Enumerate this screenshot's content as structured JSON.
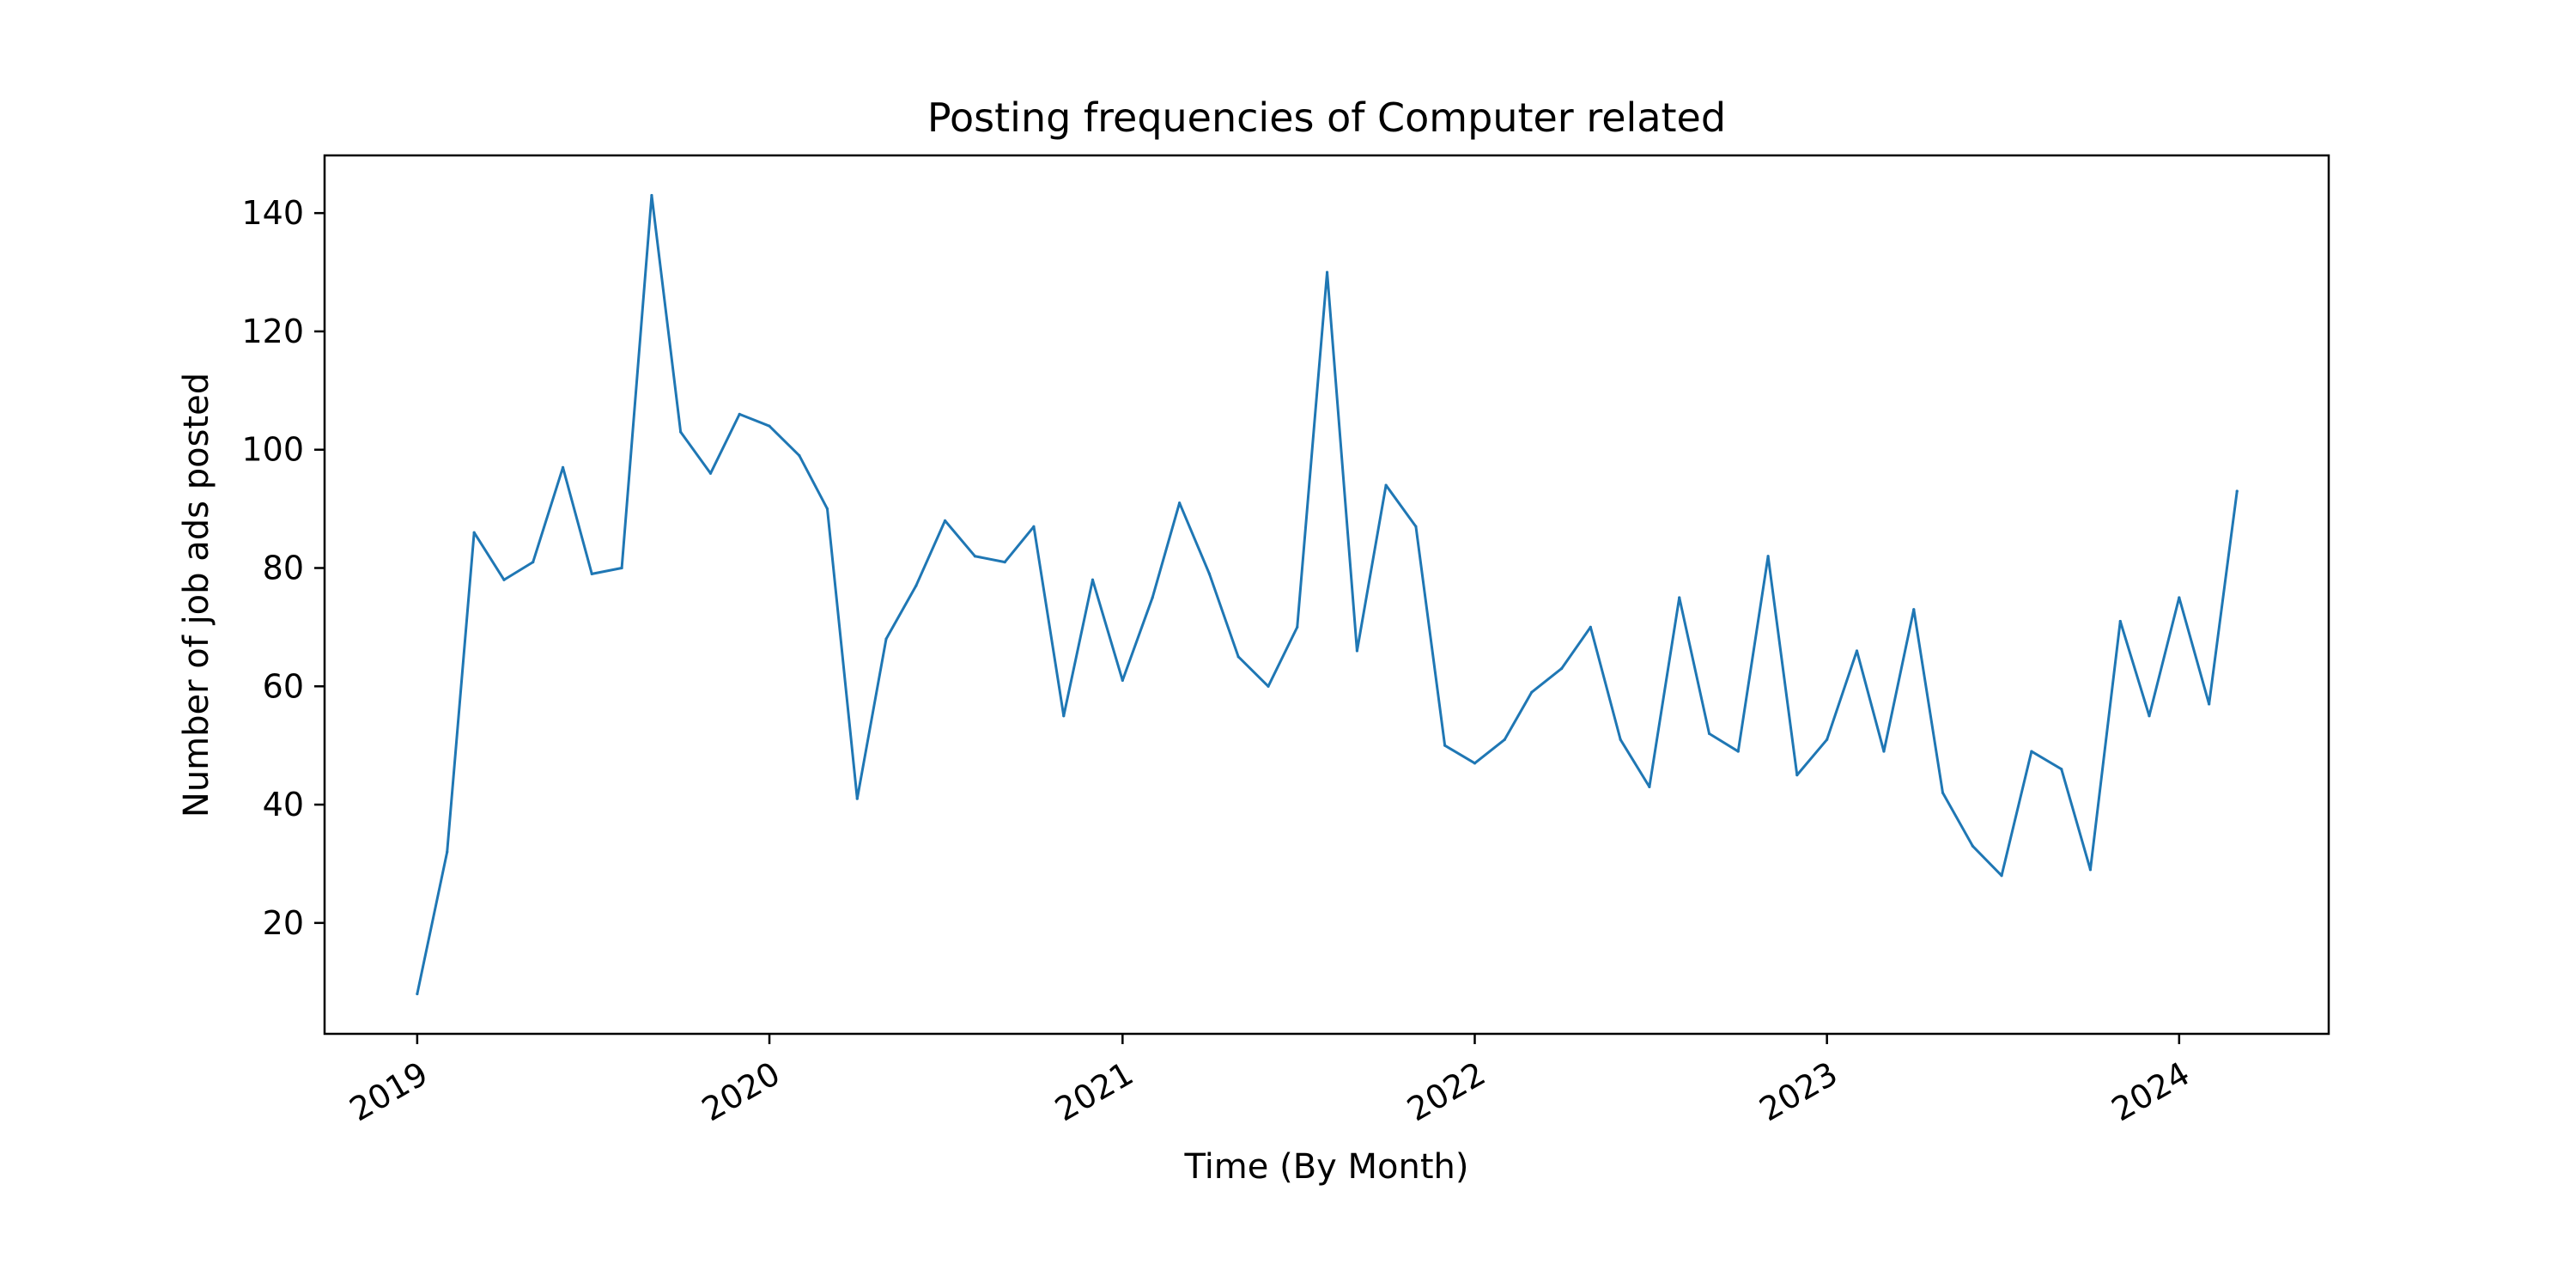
{
  "chart_data": {
    "type": "line",
    "title": "Posting frequencies of Computer related",
    "xlabel": "Time (By Month)",
    "ylabel": "Number of job ads posted",
    "x": [
      "2019-01",
      "2019-02",
      "2019-03",
      "2019-04",
      "2019-05",
      "2019-06",
      "2019-07",
      "2019-08",
      "2019-09",
      "2019-10",
      "2019-11",
      "2019-12",
      "2020-01",
      "2020-02",
      "2020-03",
      "2020-04",
      "2020-05",
      "2020-06",
      "2020-07",
      "2020-08",
      "2020-09",
      "2020-10",
      "2020-11",
      "2020-12",
      "2021-01",
      "2021-02",
      "2021-03",
      "2021-04",
      "2021-05",
      "2021-06",
      "2021-07",
      "2021-08",
      "2021-09",
      "2021-10",
      "2021-11",
      "2021-12",
      "2022-01",
      "2022-02",
      "2022-03",
      "2022-04",
      "2022-05",
      "2022-06",
      "2022-07",
      "2022-08",
      "2022-09",
      "2022-10",
      "2022-11",
      "2022-12",
      "2023-01",
      "2023-02",
      "2023-03",
      "2023-04",
      "2023-05",
      "2023-06",
      "2023-07",
      "2023-08",
      "2023-09",
      "2023-10",
      "2023-11",
      "2023-12",
      "2024-01",
      "2024-02",
      "2024-03"
    ],
    "series": [
      {
        "color": "#1f77b4",
        "values": [
          8,
          32,
          86,
          78,
          81,
          97,
          79,
          80,
          143,
          103,
          96,
          106,
          104,
          99,
          90,
          41,
          68,
          77,
          88,
          82,
          81,
          87,
          55,
          78,
          61,
          75,
          91,
          79,
          65,
          60,
          70,
          130,
          66,
          94,
          87,
          50,
          47,
          51,
          59,
          63,
          70,
          51,
          43,
          75,
          52,
          49,
          82,
          45,
          51,
          66,
          49,
          73,
          42,
          33,
          28,
          49,
          46,
          29,
          71,
          55,
          75,
          57,
          93
        ]
      }
    ],
    "xticks": [
      "2019",
      "2020",
      "2021",
      "2022",
      "2023",
      "2024"
    ],
    "yticks": [
      20,
      40,
      60,
      80,
      100,
      120,
      140
    ],
    "xlim": [
      "2018-09-27",
      "2024-06-04"
    ],
    "ylim": [
      1.25,
      149.75
    ],
    "grid": false,
    "legend": false
  }
}
